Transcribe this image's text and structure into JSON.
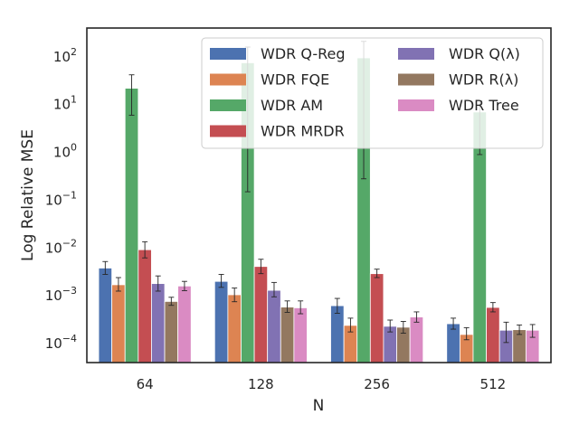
{
  "chart_data": {
    "type": "bar",
    "title": "",
    "xlabel": "N",
    "ylabel": "Log Relative MSE",
    "yscale": "log",
    "ylim": [
      4e-05,
      400
    ],
    "yticks": [
      {
        "value": 0.0001,
        "base": "10",
        "exp": "−4"
      },
      {
        "value": 0.001,
        "base": "10",
        "exp": "−3"
      },
      {
        "value": 0.01,
        "base": "10",
        "exp": "−2"
      },
      {
        "value": 0.1,
        "base": "10",
        "exp": "−1"
      },
      {
        "value": 1,
        "base": "10",
        "exp": "0"
      },
      {
        "value": 10,
        "base": "10",
        "exp": "1"
      },
      {
        "value": 100,
        "base": "10",
        "exp": "2"
      }
    ],
    "categories": [
      "64",
      "128",
      "256",
      "512"
    ],
    "series": [
      {
        "name": "WDR Q-Reg",
        "color": "#4c72b0",
        "values": [
          0.0038,
          0.002,
          0.00062,
          0.00026
        ],
        "err_low": [
          0.0028,
          0.0015,
          0.00043,
          0.0002
        ],
        "err_high": [
          0.0052,
          0.0028,
          0.00088,
          0.00034
        ]
      },
      {
        "name": "WDR FQE",
        "color": "#dd8452",
        "values": [
          0.0017,
          0.00105,
          0.00024,
          0.000155
        ],
        "err_low": [
          0.00125,
          0.00075,
          0.000175,
          0.00012
        ],
        "err_high": [
          0.0024,
          0.00145,
          0.00034,
          0.000215
        ]
      },
      {
        "name": "WDR AM",
        "color": "#55a868",
        "values": [
          22,
          75,
          95,
          7
        ],
        "err_low": [
          6,
          0.15,
          0.28,
          0.9
        ],
        "err_high": [
          42,
          160,
          210,
          12
        ]
      },
      {
        "name": "WDR MRDR",
        "color": "#c44e52",
        "values": [
          0.0092,
          0.0041,
          0.0029,
          0.00057
        ],
        "err_low": [
          0.0062,
          0.0029,
          0.0024,
          0.00046
        ],
        "err_high": [
          0.0135,
          0.0058,
          0.0036,
          0.00072
        ]
      },
      {
        "name": "WDR Q(λ)",
        "color": "#8172b3",
        "values": [
          0.0018,
          0.0013,
          0.00023,
          0.00019
        ],
        "err_low": [
          0.00125,
          0.00095,
          0.000175,
          0.000105
        ],
        "err_high": [
          0.0026,
          0.0019,
          0.00031,
          0.00028
        ]
      },
      {
        "name": "WDR R(λ)",
        "color": "#937860",
        "values": [
          0.00076,
          0.00058,
          0.00022,
          0.000195
        ],
        "err_low": [
          0.00063,
          0.00045,
          0.000165,
          0.000155
        ],
        "err_high": [
          0.00093,
          0.00078,
          0.00029,
          0.000245
        ]
      },
      {
        "name": "WDR Tree",
        "color": "#da8bc3",
        "values": [
          0.0016,
          0.00056,
          0.00036,
          0.00019
        ],
        "err_low": [
          0.00128,
          0.00042,
          0.00028,
          0.000135
        ],
        "err_high": [
          0.002,
          0.00078,
          0.00046,
          0.00025
        ]
      }
    ],
    "legend": {
      "placement": "top-right",
      "columns": 2
    }
  }
}
